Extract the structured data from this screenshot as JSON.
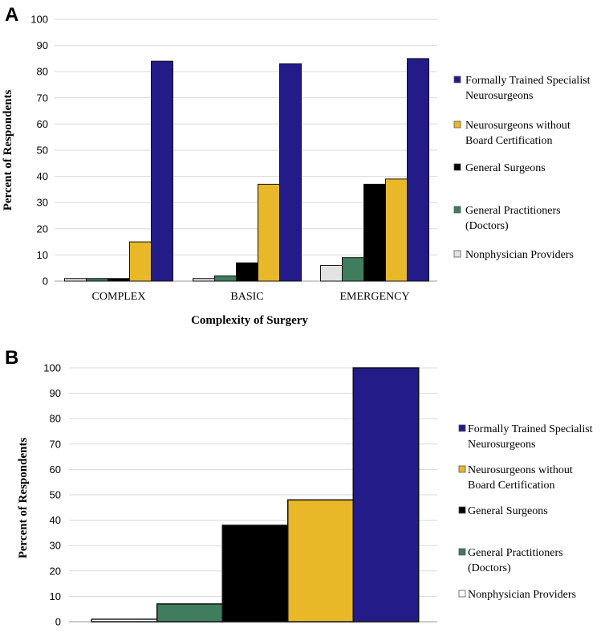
{
  "chart_data": [
    {
      "panel": "A",
      "type": "bar",
      "title": "",
      "xlabel": "Complexity of Surgery",
      "ylabel": "Percent of Respondents",
      "ylim": [
        0,
        100
      ],
      "yticks": [
        0,
        10,
        20,
        30,
        40,
        50,
        60,
        70,
        80,
        90,
        100
      ],
      "grid": true,
      "legend_position": "right",
      "categories": [
        "COMPLEX",
        "BASIC",
        "EMERGENCY"
      ],
      "series": [
        {
          "name": "Nonphysician Providers",
          "color": "#e3e3e3",
          "values": [
            1,
            1,
            6
          ]
        },
        {
          "name": "General Practitioners (Doctors)",
          "color": "#3f7d5e",
          "values": [
            1,
            2,
            9
          ]
        },
        {
          "name": "General Surgeons",
          "color": "#000000",
          "values": [
            1,
            7,
            37
          ]
        },
        {
          "name": "Neurosurgeons without Board Certification",
          "color": "#e8b828",
          "values": [
            15,
            37,
            39
          ]
        },
        {
          "name": "Formally Trained Specialist Neurosurgeons",
          "color": "#221b88",
          "values": [
            84,
            83,
            85
          ]
        }
      ],
      "legend": [
        {
          "lines": [
            "Formally Trained Specialist",
            "Neurosurgeons"
          ],
          "color": "#221b88"
        },
        {
          "lines": [
            "Neurosurgeons without",
            "Board Certification"
          ],
          "color": "#e8b828"
        },
        {
          "lines": [
            "General Surgeons"
          ],
          "color": "#000000"
        },
        {
          "lines": [
            "General Practitioners",
            "(Doctors)"
          ],
          "color": "#3f7d5e"
        },
        {
          "lines": [
            "Nonphysician Providers"
          ],
          "color": "#e3e3e3"
        }
      ]
    },
    {
      "panel": "B",
      "type": "bar",
      "title": "",
      "xlabel": "",
      "ylabel": "Percent of Respondents",
      "ylim": [
        0,
        100
      ],
      "yticks": [
        0,
        10,
        20,
        30,
        40,
        50,
        60,
        70,
        80,
        90,
        100
      ],
      "grid": true,
      "legend_position": "right",
      "categories": [
        ""
      ],
      "series": [
        {
          "name": "Nonphysician Providers",
          "color": "#ffffff",
          "values": [
            1
          ]
        },
        {
          "name": "General Practitioners (Doctors)",
          "color": "#3f7d5e",
          "values": [
            7
          ]
        },
        {
          "name": "General Surgeons",
          "color": "#000000",
          "values": [
            38
          ]
        },
        {
          "name": "Neurosurgeons without Board Certification",
          "color": "#e8b828",
          "values": [
            48
          ]
        },
        {
          "name": "Formally Trained Specialist Neurosurgeons",
          "color": "#221b88",
          "values": [
            100
          ]
        }
      ],
      "legend": [
        {
          "lines": [
            "Formally Trained Specialist",
            "Neurosurgeons"
          ],
          "color": "#221b88"
        },
        {
          "lines": [
            "Neurosurgeons without",
            "Board Certification"
          ],
          "color": "#e8b828"
        },
        {
          "lines": [
            "General Surgeons"
          ],
          "color": "#000000"
        },
        {
          "lines": [
            "General Practitioners",
            "(Doctors)"
          ],
          "color": "#3f7d5e"
        },
        {
          "lines": [
            "Nonphysician Providers"
          ],
          "color": "#ffffff"
        }
      ]
    }
  ]
}
